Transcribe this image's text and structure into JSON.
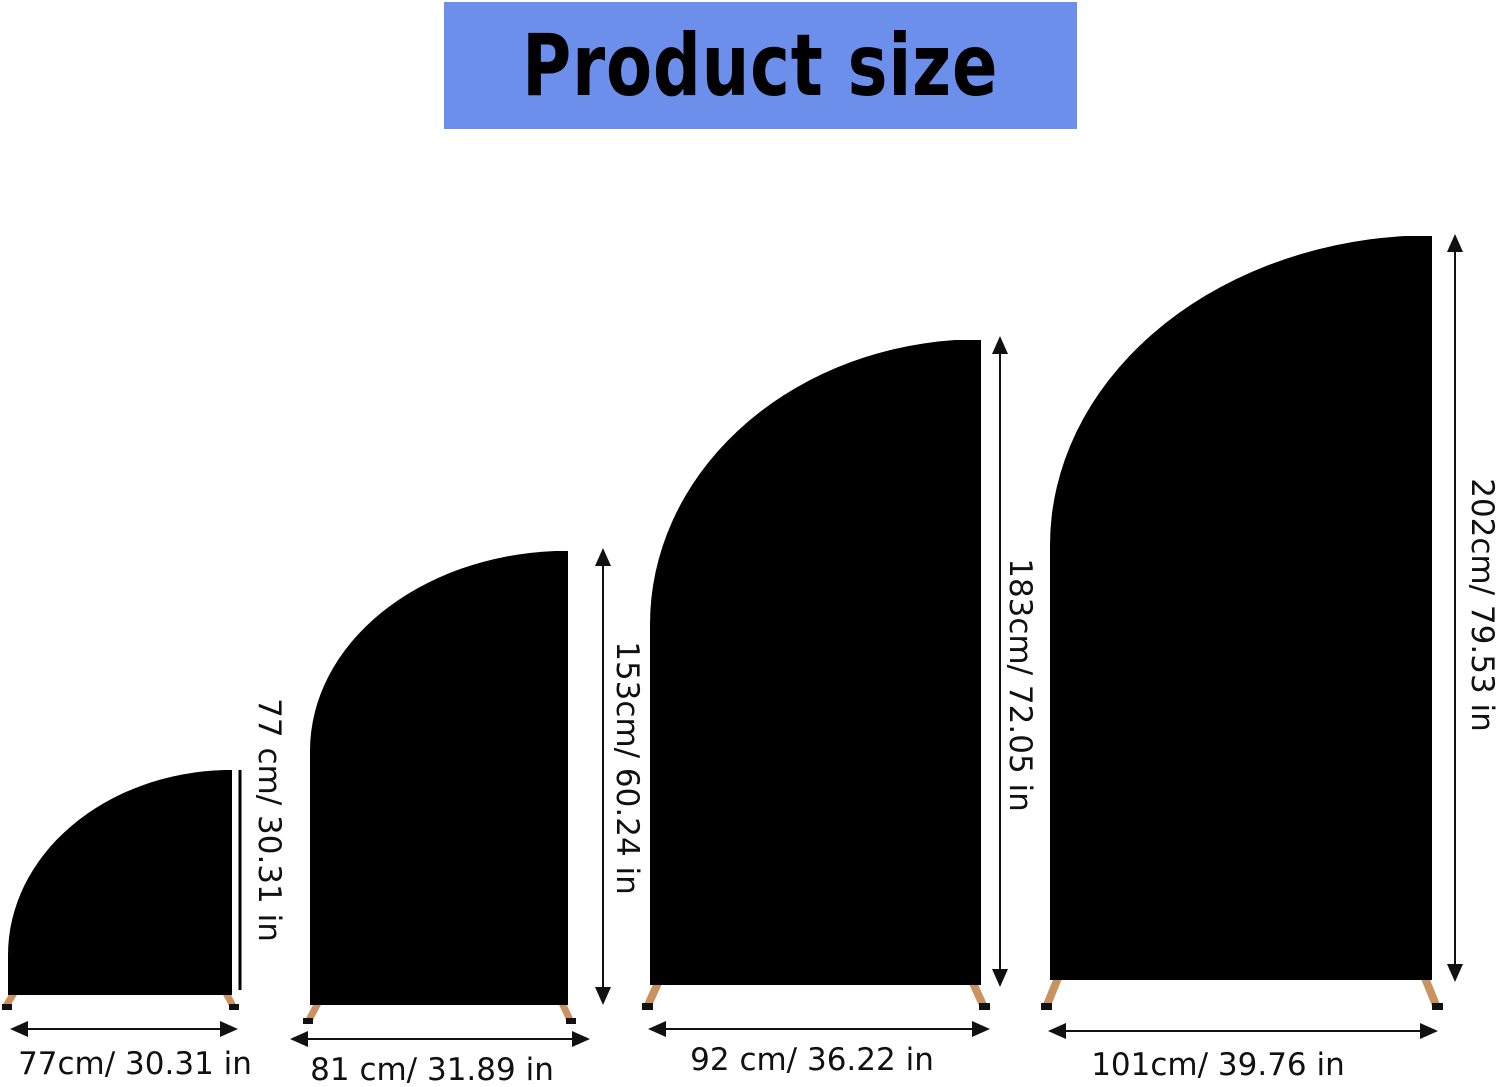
{
  "title": "Product size",
  "colors": {
    "title_background": "#6b8fea",
    "panel": "#000000",
    "legs": "#c9925e"
  },
  "panels": [
    {
      "height_label": "77 cm/ 30.31 in",
      "width_label": "77cm/ 30.31 in"
    },
    {
      "height_label": "153cm/ 60.24 in",
      "width_label": "81 cm/ 31.89 in"
    },
    {
      "height_label": "183cm/ 72.05 in",
      "width_label": "92 cm/ 36.22 in"
    },
    {
      "height_label": "202cm/ 79.53 in",
      "width_label": "101cm/ 39.76 in"
    }
  ]
}
